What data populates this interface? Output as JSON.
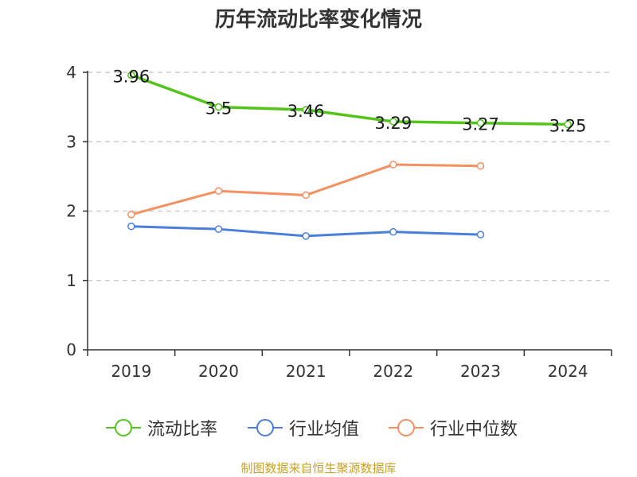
{
  "chart_data": {
    "type": "line",
    "title": "历年流动比率变化情况",
    "categories": [
      "2019",
      "2020",
      "2021",
      "2022",
      "2023",
      "2024"
    ],
    "ylim": [
      0,
      4
    ],
    "yticks": [
      "0",
      "1",
      "2",
      "3",
      "4"
    ],
    "grid": true,
    "series": [
      {
        "name": "流动比率",
        "color": "#52c41a",
        "values": [
          3.96,
          3.5,
          3.46,
          3.29,
          3.27,
          3.25
        ],
        "labels": [
          "3.96",
          "3.5",
          "3.46",
          "3.29",
          "3.27",
          "3.25"
        ]
      },
      {
        "name": "行业均值",
        "color": "#4a7fdb",
        "values": [
          1.78,
          1.74,
          1.64,
          1.7,
          1.66,
          null
        ]
      },
      {
        "name": "行业中位数",
        "color": "#f59160",
        "values": [
          1.95,
          2.29,
          2.23,
          2.67,
          2.65,
          null
        ]
      }
    ],
    "legend_position": "bottom"
  },
  "source": "制图数据来自恒生聚源数据库"
}
